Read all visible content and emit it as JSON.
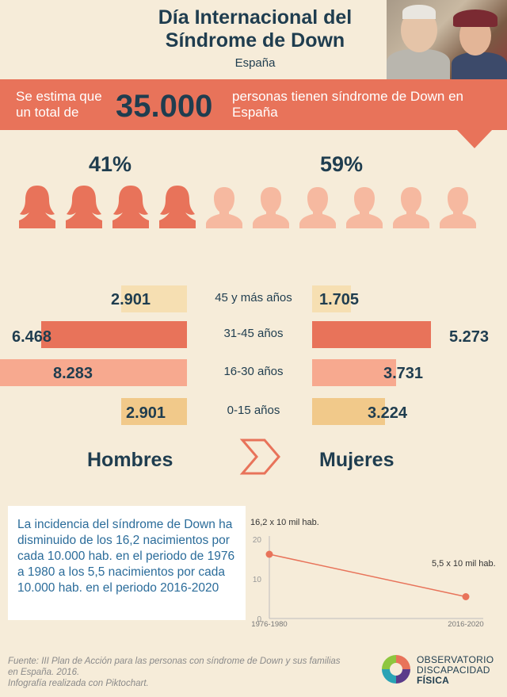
{
  "header": {
    "title_line1": "Día Internacional del",
    "title_line2": "Síndrome de Down",
    "subtitle": "España"
  },
  "banner": {
    "left_text": "Se estima que un total de",
    "number": "35.000",
    "right_text": "personas tienen síndrome de Down en España"
  },
  "gender_share": {
    "left_pct": "41%",
    "right_pct": "59%",
    "female_icon_count": 4,
    "male_icon_count": 6,
    "female_color": "#e8735a",
    "male_color": "#f6b9a0"
  },
  "chart_data": [
    {
      "type": "bar",
      "categories": [
        "45 y más años",
        "31-45 años",
        "16-30 años",
        "0-15 años"
      ],
      "series": [
        {
          "name": "Hombres",
          "values": [
            2901,
            6468,
            8283,
            2901
          ],
          "labels": [
            "2.901",
            "6.468",
            "8.283",
            "2.901"
          ]
        },
        {
          "name": "Mujeres",
          "values": [
            1705,
            5273,
            3731,
            3224
          ],
          "labels": [
            "1.705",
            "5.273",
            "3.731",
            "3.224"
          ]
        }
      ],
      "bar_colors": [
        "#f6dfb2",
        "#e8735a",
        "#f7a98f",
        "#f1c98a"
      ],
      "left_title": "Hombres",
      "right_title": "Mujeres"
    },
    {
      "type": "line",
      "x": [
        "1976-1980",
        "2016-2020"
      ],
      "y": [
        16.2,
        5.5
      ],
      "point_labels": [
        "16,2 x 10 mil hab.",
        "5,5 x 10 mil hab."
      ],
      "yticks": [
        "20",
        "10",
        "0"
      ],
      "ylim": [
        0,
        20
      ],
      "color": "#e8735a"
    }
  ],
  "note": {
    "text": "La incidencia del síndrome de Down ha disminuido de los 16,2 nacimientos por cada 10.000 hab. en el periodo de 1976 a 1980 a los 5,5 nacimientos por cada 10.000 hab. en el periodo 2016-2020"
  },
  "footer": {
    "source_line1": "Fuente: III Plan de Acción para las personas con síndrome de Down y sus familias en España. 2016.",
    "source_line2": "Infografía realizada con Piktochart.",
    "logo_line1": "OBSERVATORIO",
    "logo_line2": "DISCAPACIDAD",
    "logo_line3": "FÍSICA"
  }
}
